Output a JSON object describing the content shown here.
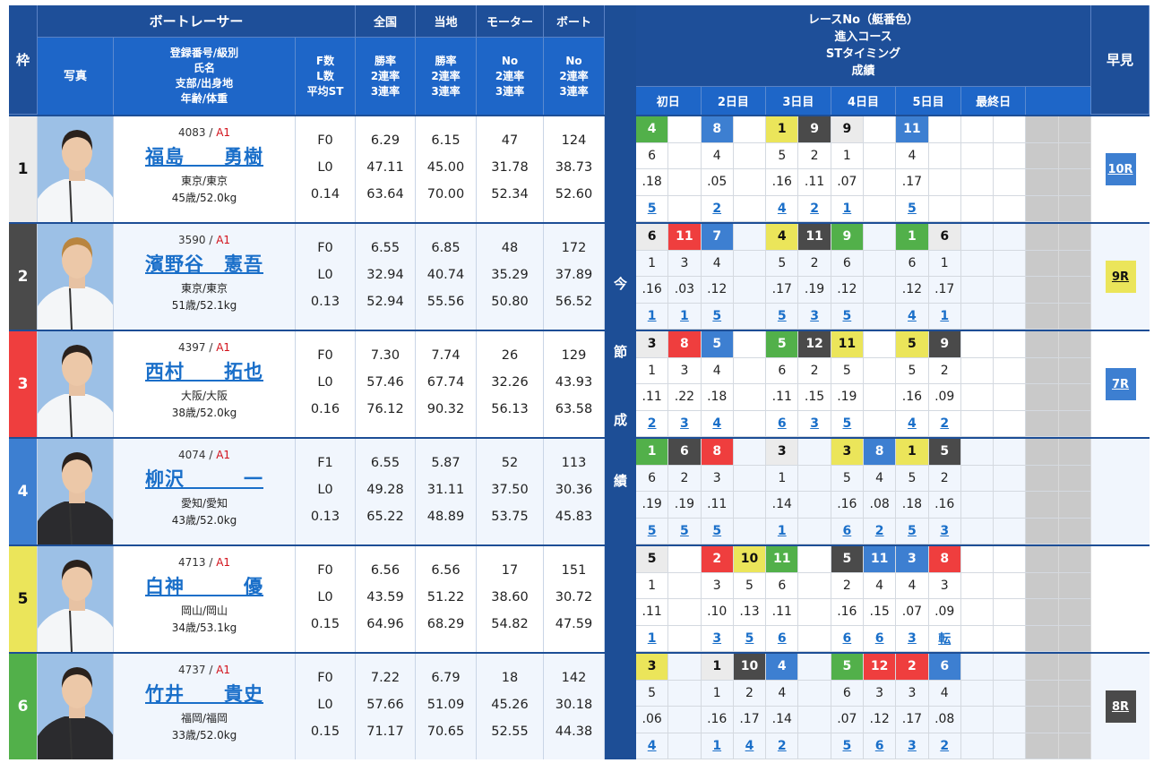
{
  "header": {
    "frame": "枠",
    "racer_group": "ボートレーサー",
    "photo": "写真",
    "reg_name": "登録番号/級別\n氏名\n支部/出身地\n年齢/体重",
    "flst": "F数\nL数\n平均ST",
    "national": "全国",
    "local": "当地",
    "motor": "モーター",
    "boat": "ボート",
    "national_sub": "勝率\n2連率\n3連率",
    "local_sub": "勝率\n2連率\n3連率",
    "motor_sub": "No\n2連率\n3連率",
    "boat_sub": "No\n2連率\n3連率",
    "series": "レースNo（艇番色）\n進入コース\nSTタイミング\n成績",
    "days": [
      "初日",
      "2日目",
      "3日目",
      "4日目",
      "5日目",
      "最終日",
      ""
    ],
    "hayami": "早見"
  },
  "vertical_label": [
    "今",
    "節",
    "成",
    "績"
  ],
  "colors": {
    "1": "#ebebeb",
    "2": "#4a4a4a",
    "3": "#ef3e3e",
    "4": "#3d7fd1",
    "5": "#ebe55a",
    "6": "#52b04a"
  },
  "racers": [
    {
      "frame": "1",
      "reg": "4083",
      "class": "A1",
      "name": "福島　　勇樹",
      "branch": "東京/東京",
      "age_weight": "45歳/52.0kg",
      "f": "F0",
      "l": "L0",
      "st": "0.14",
      "national": [
        "6.29",
        "47.11",
        "63.64"
      ],
      "local": [
        "6.15",
        "45.00",
        "70.00"
      ],
      "motor": [
        "47",
        "31.78",
        "52.34"
      ],
      "boat": [
        "124",
        "38.73",
        "52.60"
      ],
      "races": [
        {
          "no": "4",
          "color": 6,
          "course": "6",
          "st": ".18",
          "result": "5"
        },
        {},
        {
          "no": "8",
          "color": 4,
          "course": "4",
          "st": ".05",
          "result": "2"
        },
        {},
        {
          "no": "1",
          "color": 5,
          "course": "5",
          "st": ".16",
          "result": "4"
        },
        {
          "no": "9",
          "color": 2,
          "course": "2",
          "st": ".11",
          "result": "2"
        },
        {
          "no": "9",
          "color": 1,
          "course": "1",
          "st": ".07",
          "result": "1"
        },
        {},
        {
          "no": "11",
          "color": 4,
          "course": "4",
          "st": ".17",
          "result": "5"
        },
        {},
        {},
        {}
      ],
      "hayami": "10R",
      "hayami_color": 4
    },
    {
      "frame": "2",
      "reg": "3590",
      "class": "A1",
      "name": "濱野谷　憲吾",
      "branch": "東京/東京",
      "age_weight": "51歳/52.1kg",
      "f": "F0",
      "l": "L0",
      "st": "0.13",
      "national": [
        "6.55",
        "32.94",
        "52.94"
      ],
      "local": [
        "6.85",
        "40.74",
        "55.56"
      ],
      "motor": [
        "48",
        "35.29",
        "50.80"
      ],
      "boat": [
        "172",
        "37.89",
        "56.52"
      ],
      "races": [
        {
          "no": "6",
          "color": 1,
          "course": "1",
          "st": ".16",
          "result": "1"
        },
        {
          "no": "11",
          "color": 3,
          "course": "3",
          "st": ".03",
          "result": "1"
        },
        {
          "no": "7",
          "color": 4,
          "course": "4",
          "st": ".12",
          "result": "5"
        },
        {},
        {
          "no": "4",
          "color": 5,
          "course": "5",
          "st": ".17",
          "result": "5"
        },
        {
          "no": "11",
          "color": 2,
          "course": "2",
          "st": ".19",
          "result": "3"
        },
        {
          "no": "9",
          "color": 6,
          "course": "6",
          "st": ".12",
          "result": "5"
        },
        {},
        {
          "no": "1",
          "color": 6,
          "course": "6",
          "st": ".12",
          "result": "4"
        },
        {
          "no": "6",
          "color": 1,
          "course": "1",
          "st": ".17",
          "result": "1"
        },
        {},
        {}
      ],
      "hayami": "9R",
      "hayami_color": 5
    },
    {
      "frame": "3",
      "reg": "4397",
      "class": "A1",
      "name": "西村　　拓也",
      "branch": "大阪/大阪",
      "age_weight": "38歳/52.0kg",
      "f": "F0",
      "l": "L0",
      "st": "0.16",
      "national": [
        "7.30",
        "57.46",
        "76.12"
      ],
      "local": [
        "7.74",
        "67.74",
        "90.32"
      ],
      "motor": [
        "26",
        "32.26",
        "56.13"
      ],
      "boat": [
        "129",
        "43.93",
        "63.58"
      ],
      "races": [
        {
          "no": "3",
          "color": 1,
          "course": "1",
          "st": ".11",
          "result": "2"
        },
        {
          "no": "8",
          "color": 3,
          "course": "3",
          "st": ".22",
          "result": "3"
        },
        {
          "no": "5",
          "color": 4,
          "course": "4",
          "st": ".18",
          "result": "4"
        },
        {},
        {
          "no": "5",
          "color": 6,
          "course": "6",
          "st": ".11",
          "result": "6"
        },
        {
          "no": "12",
          "color": 2,
          "course": "2",
          "st": ".15",
          "result": "3"
        },
        {
          "no": "11",
          "color": 5,
          "course": "5",
          "st": ".19",
          "result": "5"
        },
        {},
        {
          "no": "5",
          "color": 5,
          "course": "5",
          "st": ".16",
          "result": "4"
        },
        {
          "no": "9",
          "color": 2,
          "course": "2",
          "st": ".09",
          "result": "2"
        },
        {},
        {}
      ],
      "hayami": "7R",
      "hayami_color": 4
    },
    {
      "frame": "4",
      "reg": "4074",
      "class": "A1",
      "name": "柳沢　　　一",
      "branch": "愛知/愛知",
      "age_weight": "43歳/52.0kg",
      "f": "F1",
      "l": "L0",
      "st": "0.13",
      "national": [
        "6.55",
        "49.28",
        "65.22"
      ],
      "local": [
        "5.87",
        "31.11",
        "48.89"
      ],
      "motor": [
        "52",
        "37.50",
        "53.75"
      ],
      "boat": [
        "113",
        "30.36",
        "45.83"
      ],
      "races": [
        {
          "no": "1",
          "color": 6,
          "course": "6",
          "st": ".19",
          "result": "5"
        },
        {
          "no": "6",
          "color": 2,
          "course": "2",
          "st": ".19",
          "result": "5"
        },
        {
          "no": "8",
          "color": 3,
          "course": "3",
          "st": ".11",
          "result": "5"
        },
        {},
        {
          "no": "3",
          "color": 1,
          "course": "1",
          "st": ".14",
          "result": "1"
        },
        {},
        {
          "no": "3",
          "color": 5,
          "course": "5",
          "st": ".16",
          "result": "6"
        },
        {
          "no": "8",
          "color": 4,
          "course": "4",
          "st": ".08",
          "result": "2"
        },
        {
          "no": "1",
          "color": 5,
          "course": "5",
          "st": ".18",
          "result": "5"
        },
        {
          "no": "5",
          "color": 2,
          "course": "2",
          "st": ".16",
          "result": "3"
        },
        {},
        {}
      ],
      "hayami": "",
      "hayami_color": 0
    },
    {
      "frame": "5",
      "reg": "4713",
      "class": "A1",
      "name": "白神　　　優",
      "branch": "岡山/岡山",
      "age_weight": "34歳/53.1kg",
      "f": "F0",
      "l": "L0",
      "st": "0.15",
      "national": [
        "6.56",
        "43.59",
        "64.96"
      ],
      "local": [
        "6.56",
        "51.22",
        "68.29"
      ],
      "motor": [
        "17",
        "38.60",
        "54.82"
      ],
      "boat": [
        "151",
        "30.72",
        "47.59"
      ],
      "races": [
        {
          "no": "5",
          "color": 1,
          "course": "1",
          "st": ".11",
          "result": "1"
        },
        {},
        {
          "no": "2",
          "color": 3,
          "course": "3",
          "st": ".10",
          "result": "3"
        },
        {
          "no": "10",
          "color": 5,
          "course": "5",
          "st": ".13",
          "result": "5"
        },
        {
          "no": "11",
          "color": 6,
          "course": "6",
          "st": ".11",
          "result": "6"
        },
        {},
        {
          "no": "5",
          "color": 2,
          "course": "2",
          "st": ".16",
          "result": "6"
        },
        {
          "no": "11",
          "color": 4,
          "course": "4",
          "st": ".15",
          "result": "6"
        },
        {
          "no": "3",
          "color": 4,
          "course": "4",
          "st": ".07",
          "result": "3"
        },
        {
          "no": "8",
          "color": 3,
          "course": "3",
          "st": ".09",
          "result": "転"
        },
        {},
        {}
      ],
      "hayami": "",
      "hayami_color": 0
    },
    {
      "frame": "6",
      "reg": "4737",
      "class": "A1",
      "name": "竹井　　貴史",
      "branch": "福岡/福岡",
      "age_weight": "33歳/52.0kg",
      "f": "F0",
      "l": "L0",
      "st": "0.15",
      "national": [
        "7.22",
        "57.66",
        "71.17"
      ],
      "local": [
        "6.79",
        "51.09",
        "70.65"
      ],
      "motor": [
        "18",
        "45.26",
        "52.55"
      ],
      "boat": [
        "142",
        "30.18",
        "44.38"
      ],
      "races": [
        {
          "no": "3",
          "color": 5,
          "course": "5",
          "st": ".06",
          "result": "4"
        },
        {},
        {
          "no": "1",
          "color": 1,
          "course": "1",
          "st": ".16",
          "result": "1"
        },
        {
          "no": "10",
          "color": 2,
          "course": "2",
          "st": ".17",
          "result": "4"
        },
        {
          "no": "4",
          "color": 4,
          "course": "4",
          "st": ".14",
          "result": "2"
        },
        {},
        {
          "no": "5",
          "color": 6,
          "course": "6",
          "st": ".07",
          "result": "5"
        },
        {
          "no": "12",
          "color": 3,
          "course": "3",
          "st": ".12",
          "result": "6"
        },
        {
          "no": "2",
          "color": 3,
          "course": "3",
          "st": ".17",
          "result": "3"
        },
        {
          "no": "6",
          "color": 4,
          "course": "4",
          "st": ".08",
          "result": "2"
        },
        {},
        {}
      ],
      "hayami": "8R",
      "hayami_color": 2
    }
  ]
}
